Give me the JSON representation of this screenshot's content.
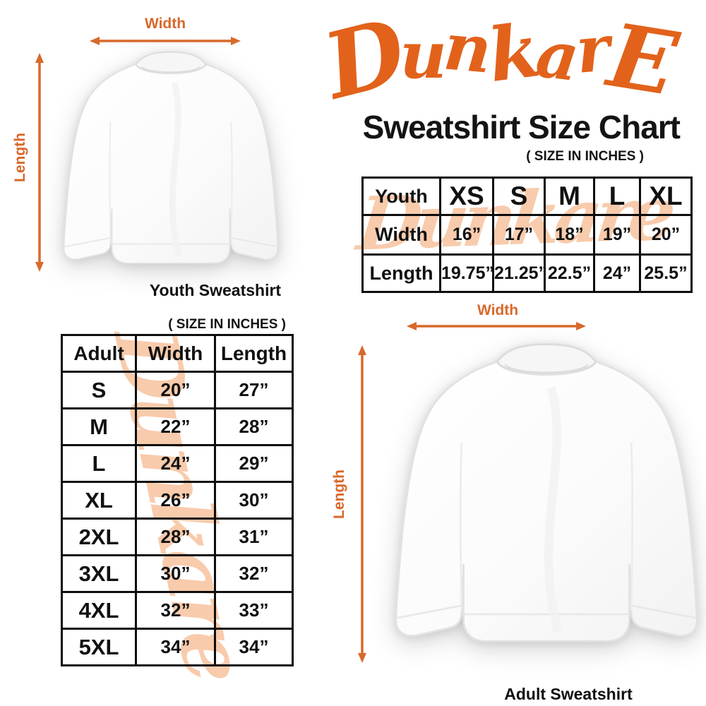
{
  "header": {
    "logo_text": "DunkarE",
    "title": "Sweatshirt Size Chart",
    "size_note": "( SIZE IN INCHES )"
  },
  "watermark_text": "Dunkare",
  "youth_diagram": {
    "width_label": "Width",
    "length_label": "Length",
    "caption": "Youth Sweatshirt"
  },
  "adult_section": {
    "size_note": "( SIZE IN INCHES )"
  },
  "adult_diagram": {
    "width_label": "Width",
    "length_label": "Length",
    "caption": "Adult Sweatshirt"
  },
  "colors": {
    "brand_orange": "#E2621B",
    "arrow_orange": "#D8692B",
    "watermark_peach": "#F8CBAC",
    "text_black": "#111111"
  },
  "chart_data": [
    {
      "type": "table",
      "title": "Youth Sweatshirt Size Chart (inches)",
      "columns": [
        "Youth",
        "XS",
        "S",
        "M",
        "L",
        "XL"
      ],
      "rows": [
        [
          "Width",
          "16”",
          "17”",
          "18”",
          "19”",
          "20”"
        ],
        [
          "Length",
          "19.75”",
          "21.25”",
          "22.5”",
          "24”",
          "25.5”"
        ]
      ]
    },
    {
      "type": "table",
      "title": "Adult Sweatshirt Size Chart (inches)",
      "columns": [
        "Adult",
        "Width",
        "Length"
      ],
      "rows": [
        [
          "S",
          "20”",
          "27”"
        ],
        [
          "M",
          "22”",
          "28”"
        ],
        [
          "L",
          "24”",
          "29”"
        ],
        [
          "XL",
          "26”",
          "30”"
        ],
        [
          "2XL",
          "28”",
          "31”"
        ],
        [
          "3XL",
          "30”",
          "32”"
        ],
        [
          "4XL",
          "32”",
          "33”"
        ],
        [
          "5XL",
          "34”",
          "34”"
        ]
      ]
    }
  ]
}
